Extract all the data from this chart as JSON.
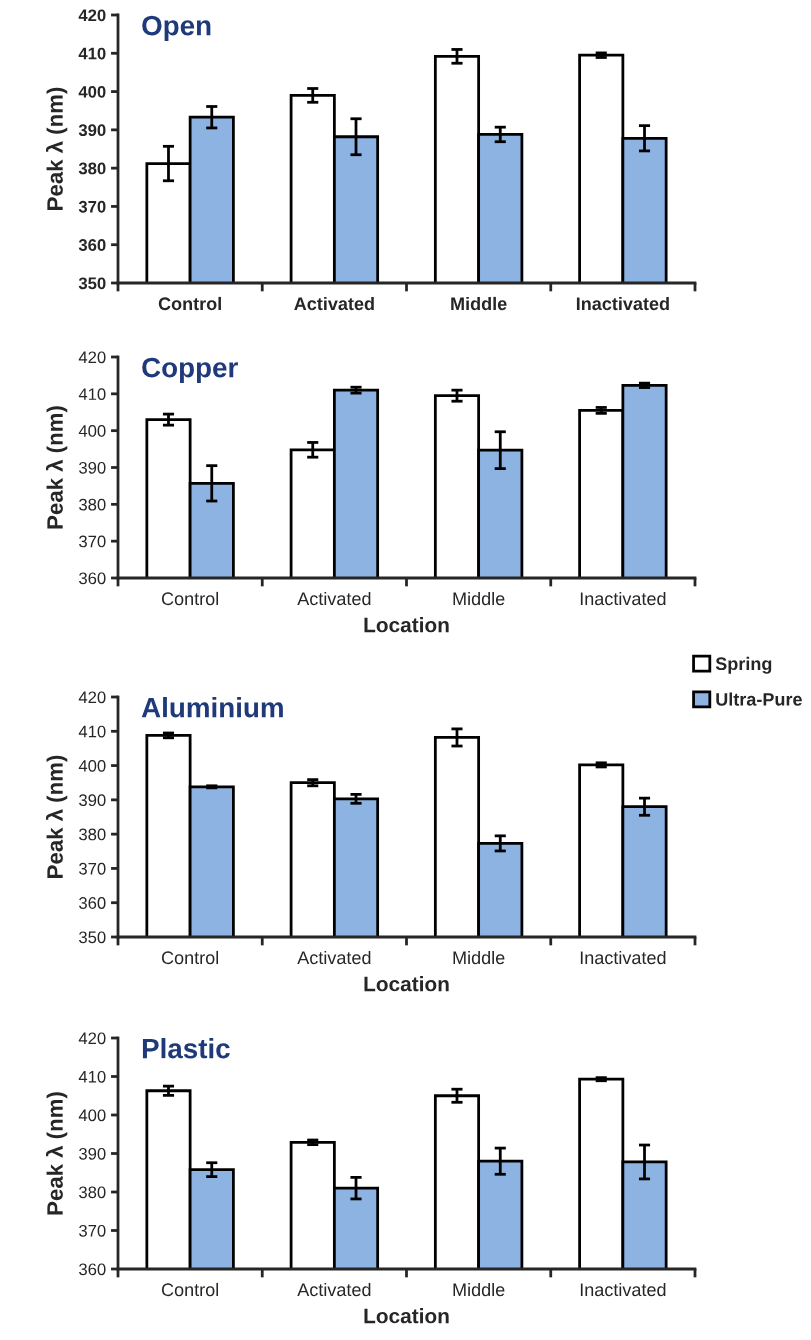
{
  "chart_data": [
    {
      "type": "bar",
      "title": "Open",
      "ylabel": "Peak λ (nm)",
      "categories": [
        "Control",
        "Activated",
        "Middle",
        "Inactivated"
      ],
      "ylim": [
        350,
        420
      ],
      "yticks": [
        350,
        360,
        370,
        380,
        390,
        400,
        410,
        420
      ],
      "grid": false,
      "legend": false,
      "series": [
        {
          "color": "#ffffff",
          "values": [
            381.2,
            399.0,
            409.2,
            409.5
          ],
          "errors": [
            4.5,
            1.8,
            1.8,
            0.6
          ]
        },
        {
          "color": "#8db3e2",
          "values": [
            393.3,
            388.2,
            388.8,
            387.8
          ],
          "errors": [
            2.8,
            4.7,
            1.9,
            3.3
          ]
        }
      ]
    },
    {
      "type": "bar",
      "title": "Copper",
      "ylabel": "Peak λ (nm)",
      "xlabel": "Location",
      "categories": [
        "Control",
        "Activated",
        "Middle",
        "Inactivated"
      ],
      "ylim": [
        360,
        420
      ],
      "yticks": [
        360,
        370,
        380,
        390,
        400,
        410,
        420
      ],
      "grid": false,
      "legend": false,
      "series": [
        {
          "color": "#ffffff",
          "values": [
            403.0,
            394.8,
            409.5,
            405.5
          ],
          "errors": [
            1.5,
            2.0,
            1.5,
            0.8
          ]
        },
        {
          "color": "#8db3e2",
          "values": [
            385.7,
            411.0,
            394.7,
            412.3
          ],
          "errors": [
            4.8,
            0.8,
            5.0,
            0.6
          ]
        }
      ]
    },
    {
      "type": "bar",
      "title": "Aluminium",
      "ylabel": "Peak λ (nm)",
      "xlabel": "Location",
      "categories": [
        "Control",
        "Activated",
        "Middle",
        "Inactivated"
      ],
      "ylim": [
        350,
        420
      ],
      "yticks": [
        350,
        360,
        370,
        380,
        390,
        400,
        410,
        420
      ],
      "grid": false,
      "legend": "right",
      "series": [
        {
          "name": "Spring",
          "color": "#ffffff",
          "values": [
            408.8,
            395.0,
            408.2,
            400.2
          ],
          "errors": [
            0.7,
            0.9,
            2.5,
            0.6
          ]
        },
        {
          "name": "Ultra-Pure",
          "color": "#8db3e2",
          "values": [
            393.8,
            390.3,
            377.3,
            388.0
          ],
          "errors": [
            0.3,
            1.3,
            2.2,
            2.5
          ]
        }
      ]
    },
    {
      "type": "bar",
      "title": "Plastic",
      "ylabel": "Peak λ (nm)",
      "xlabel": "Location",
      "categories": [
        "Control",
        "Activated",
        "Middle",
        "Inactivated"
      ],
      "ylim": [
        360,
        420
      ],
      "yticks": [
        360,
        370,
        380,
        390,
        400,
        410,
        420
      ],
      "grid": false,
      "legend": false,
      "series": [
        {
          "color": "#ffffff",
          "values": [
            406.3,
            392.9,
            405.0,
            409.3
          ],
          "errors": [
            1.2,
            0.6,
            1.7,
            0.4
          ]
        },
        {
          "color": "#8db3e2",
          "values": [
            385.8,
            381.0,
            388.0,
            387.8
          ],
          "errors": [
            1.8,
            2.8,
            3.4,
            4.4
          ]
        }
      ]
    }
  ]
}
